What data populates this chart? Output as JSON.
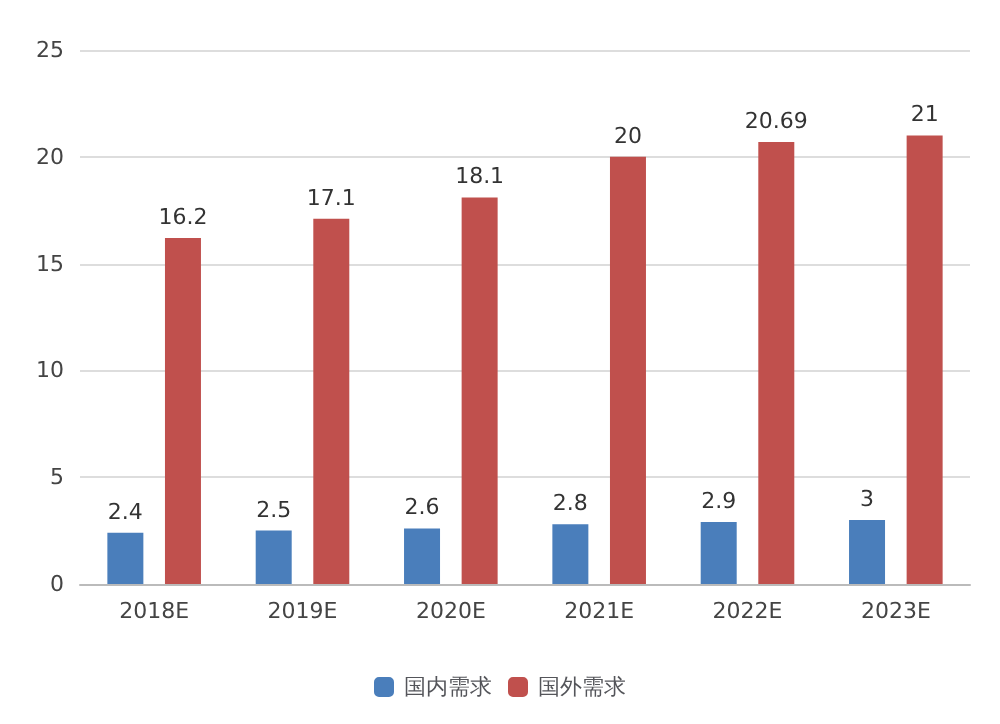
{
  "chart_data": {
    "type": "bar",
    "categories": [
      "2018E",
      "2019E",
      "2020E",
      "2021E",
      "2022E",
      "2023E"
    ],
    "series": [
      {
        "name": "国内需求",
        "color": "#4a7ebb",
        "values": [
          2.4,
          2.5,
          2.6,
          2.8,
          2.9,
          3
        ]
      },
      {
        "name": "国外需求",
        "color": "#c0504d",
        "values": [
          16.2,
          17.1,
          18.1,
          20,
          20.69,
          21
        ]
      }
    ],
    "ylim": [
      0,
      25
    ],
    "yticks": [
      0,
      5,
      10,
      15,
      20,
      25
    ],
    "grid": "y",
    "legend": "bottom",
    "data_labels": true
  }
}
